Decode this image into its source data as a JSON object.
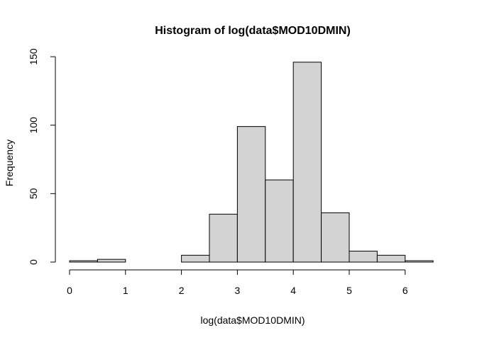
{
  "chart_data": {
    "type": "bar",
    "title": "Histogram of log(data$MOD10DMIN)",
    "xlabel": "log(data$MOD10DMIN)",
    "ylabel": "Frequency",
    "bin_edges": [
      0,
      0.5,
      1,
      1.5,
      2,
      2.5,
      3,
      3.5,
      4,
      4.5,
      5,
      5.5,
      6,
      6.5
    ],
    "values": [
      1,
      2,
      0,
      0,
      5,
      35,
      99,
      60,
      146,
      36,
      8,
      5,
      1
    ],
    "xlim": [
      0,
      6.5
    ],
    "ylim": [
      0,
      150
    ],
    "x_ticks": [
      "0",
      "1",
      "2",
      "3",
      "4",
      "5",
      "6"
    ],
    "y_ticks": [
      "0",
      "50",
      "100",
      "150"
    ],
    "bar_fill": "#d3d3d3",
    "bar_stroke": "#000000",
    "grid": false
  }
}
